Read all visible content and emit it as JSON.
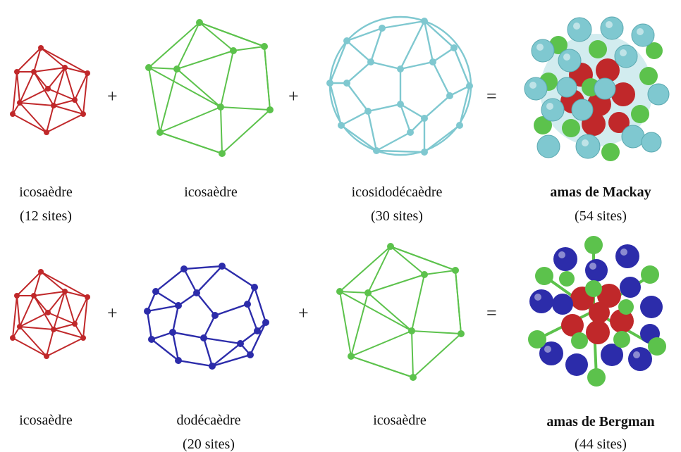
{
  "operators": {
    "plus": "+",
    "equals": "="
  },
  "row1": {
    "labels": [
      {
        "name": "icosaèdre",
        "sites": "(12 sites)"
      },
      {
        "name": "icosaèdre",
        "sites": ""
      },
      {
        "name": "icosidodécaèdre",
        "sites": "(30 sites)"
      },
      {
        "name": "amas de Mackay",
        "sites": "(54 sites)"
      }
    ]
  },
  "row2": {
    "labels": [
      {
        "name": "icosaèdre",
        "sites": ""
      },
      {
        "name": "dodécaèdre",
        "sites": "(20 sites)"
      },
      {
        "name": "icosaèdre",
        "sites": ""
      },
      {
        "name": "amas de Bergman",
        "sites": "(44 sites)"
      }
    ]
  },
  "colors": {
    "red": "#c0282a",
    "green": "#5cc24c",
    "cyan": "#7fc8d0",
    "blue": "#2c2caa"
  }
}
